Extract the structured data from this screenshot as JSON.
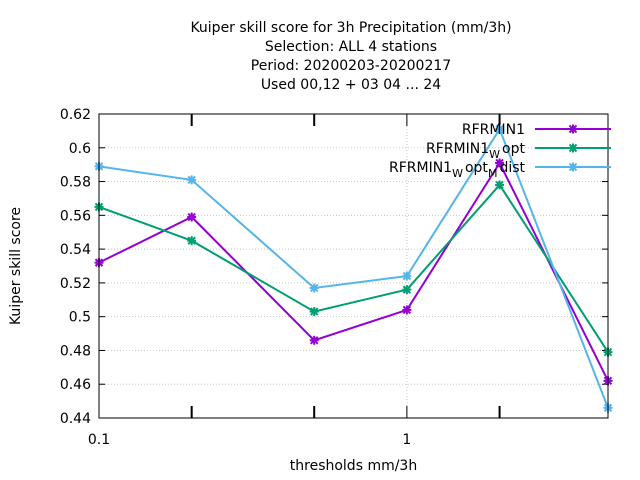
{
  "chart_data": {
    "type": "line",
    "title_lines": [
      "Kuiper skill score  for 3h Precipitation (mm/3h)",
      "Selection: ALL      4 stations",
      "Period: 20200203-20200217",
      "Used  00,12  + 03 04 ... 24"
    ],
    "xlabel": "thresholds mm/3h",
    "ylabel": "Kuiper skill score",
    "x_scale": "log",
    "xlim": [
      0.1,
      4.5
    ],
    "ylim": [
      0.44,
      0.62
    ],
    "x_ticks": [
      {
        "value": 0.1,
        "label": "0.1"
      },
      {
        "value": 1,
        "label": "1"
      }
    ],
    "x_minor_ticks": [
      0.2,
      0.5,
      2
    ],
    "y_ticks": [
      {
        "value": 0.44,
        "label": "0.44"
      },
      {
        "value": 0.46,
        "label": "0.46"
      },
      {
        "value": 0.48,
        "label": "0.48"
      },
      {
        "value": 0.5,
        "label": "0.5"
      },
      {
        "value": 0.52,
        "label": "0.52"
      },
      {
        "value": 0.54,
        "label": "0.54"
      },
      {
        "value": 0.56,
        "label": "0.56"
      },
      {
        "value": 0.58,
        "label": "0.58"
      },
      {
        "value": 0.6,
        "label": "0.6"
      },
      {
        "value": 0.62,
        "label": "0.62"
      }
    ],
    "grid": true,
    "legend_position": "top-right",
    "x": [
      0.1,
      0.2,
      0.5,
      1,
      2,
      4.5
    ],
    "series": [
      {
        "legend_parts": [
          "RFRMIN1",
          "",
          "",
          "",
          ""
        ],
        "color": "#9400d3",
        "values": [
          0.532,
          0.559,
          0.486,
          0.504,
          0.591,
          0.462
        ]
      },
      {
        "legend_parts": [
          "RFRMIN1",
          "W",
          "opt",
          "",
          ""
        ],
        "color": "#009e73",
        "values": [
          0.565,
          0.545,
          0.503,
          0.516,
          0.578,
          0.479
        ]
      },
      {
        "legend_parts": [
          "RFRMIN1",
          "W",
          "opt",
          "M",
          "dist"
        ],
        "color": "#56b4e9",
        "values": [
          0.589,
          0.581,
          0.517,
          0.524,
          0.611,
          0.446
        ]
      }
    ]
  }
}
